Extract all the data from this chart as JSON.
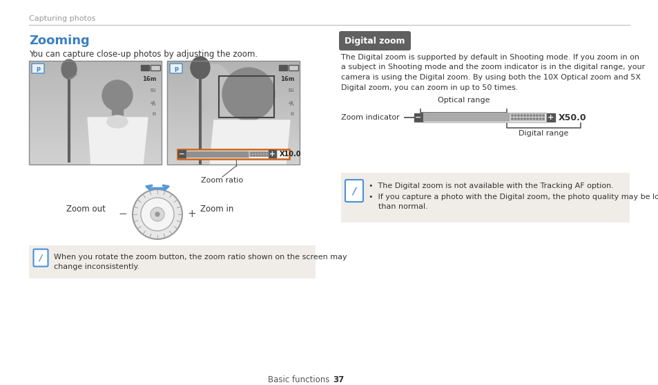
{
  "bg_color": "#ffffff",
  "header_text": "Capturing photos",
  "header_line_color": "#bbbbbb",
  "title_text": "Zooming",
  "title_color": "#3a7fc1",
  "subtitle_text": "You can capture close-up photos by adjusting the zoom.",
  "section2_badge": "Digital zoom",
  "section2_badge_bg": "#606060",
  "section2_badge_fg": "#ffffff",
  "section2_body_lines": [
    "The Digital zoom is supported by default in Shooting mode. If you zoom in on",
    "a subject in Shooting mode and the zoom indicator is in the digital range, your",
    "camera is using the Digital zoom. By using both the 10X Optical zoom and 5X",
    "Digital zoom, you can zoom in up to 50 times."
  ],
  "optical_range_label": "Optical range",
  "zoom_indicator_label": "Zoom indicator",
  "digital_range_label": "Digital range",
  "zoom_x50_label": "X50.0",
  "note1_bg": "#f0ede8",
  "note1_text_line1": "When you rotate the zoom button, the zoom ratio shown on the screen may",
  "note1_text_line2": "change inconsistently.",
  "note2_text1": "•  The Digital zoom is not available with the Tracking AF option.",
  "note2_text2": "•  If you capture a photo with the Digital zoom, the photo quality may be lower",
  "note2_text3": "    than normal.",
  "zoom_ratio_label": "Zoom ratio",
  "zoom_out_label": "Zoom out",
  "zoom_in_label": "Zoom in",
  "footer_text": "Basic functions",
  "footer_num": "37"
}
